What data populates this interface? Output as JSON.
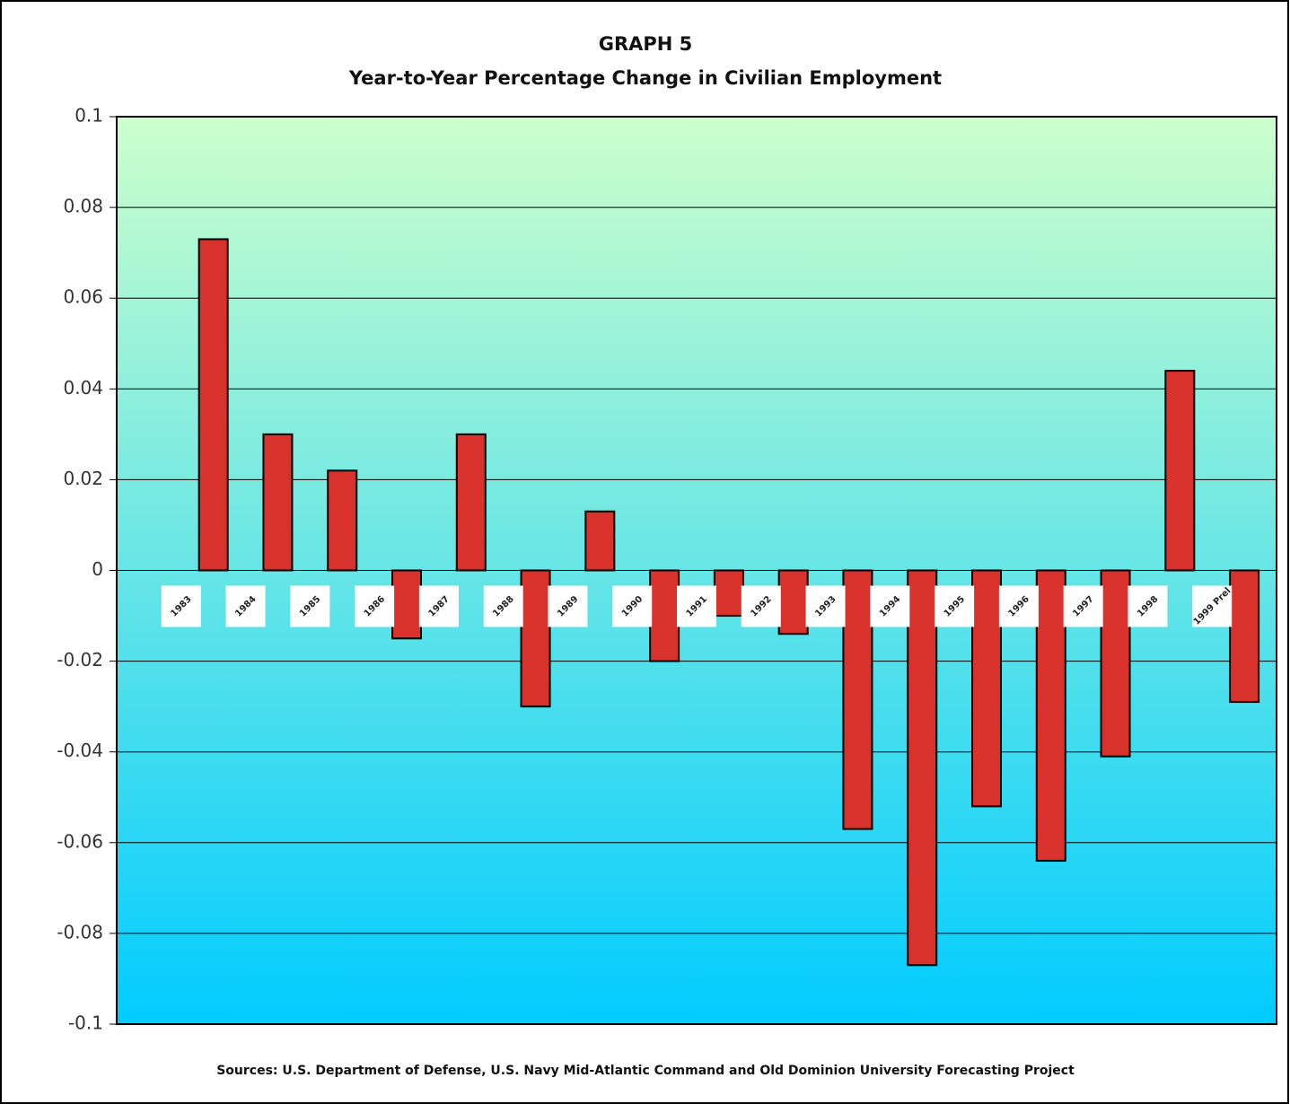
{
  "chart_data": {
    "type": "bar",
    "title": "GRAPH 5",
    "subtitle": "Year-to-Year Percentage Change in Civilian Employment",
    "source": "Sources: U.S. Department of Defense, U.S. Navy Mid-Atlantic Command and Old Dominion University Forecasting Project",
    "categories": [
      null,
      "1983",
      "1984",
      "1985",
      "1986",
      "1987",
      "1988",
      "1989",
      "1990",
      "1991",
      "1992",
      "1993",
      "1994",
      "1995",
      "1996",
      "1997",
      "1998",
      "1999 Prel"
    ],
    "values": [
      null,
      0.073,
      0.03,
      0.022,
      -0.015,
      0.03,
      -0.03,
      0.013,
      -0.02,
      -0.01,
      -0.014,
      -0.057,
      -0.087,
      -0.052,
      -0.064,
      -0.041,
      0.044,
      -0.029
    ],
    "color": "#d9312b",
    "ylim": [
      -0.1,
      0.1
    ],
    "yticks": [
      -0.1,
      -0.08,
      -0.06,
      -0.04,
      -0.02,
      0,
      0.02,
      0.04,
      0.06,
      0.08,
      0.1
    ],
    "grid": true
  }
}
